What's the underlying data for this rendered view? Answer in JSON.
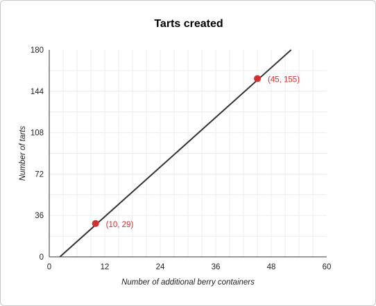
{
  "chart_data": {
    "type": "line",
    "title": "Tarts created",
    "xlabel": "Number of additional berry containers",
    "ylabel": "Number of tarts",
    "xlim": [
      0,
      60
    ],
    "ylim": [
      0,
      180
    ],
    "xticks": [
      0,
      12,
      24,
      36,
      48,
      60
    ],
    "yticks": [
      0,
      36,
      72,
      108,
      144,
      180
    ],
    "grid": true,
    "line": {
      "x": [
        2.3,
        52.3
      ],
      "y": [
        0,
        180
      ],
      "color": "#333333"
    },
    "points": [
      {
        "x": 10,
        "y": 29,
        "label": "(10, 29)"
      },
      {
        "x": 45,
        "y": 155,
        "label": "(45, 155)"
      }
    ],
    "point_color": "#d32f2f"
  }
}
